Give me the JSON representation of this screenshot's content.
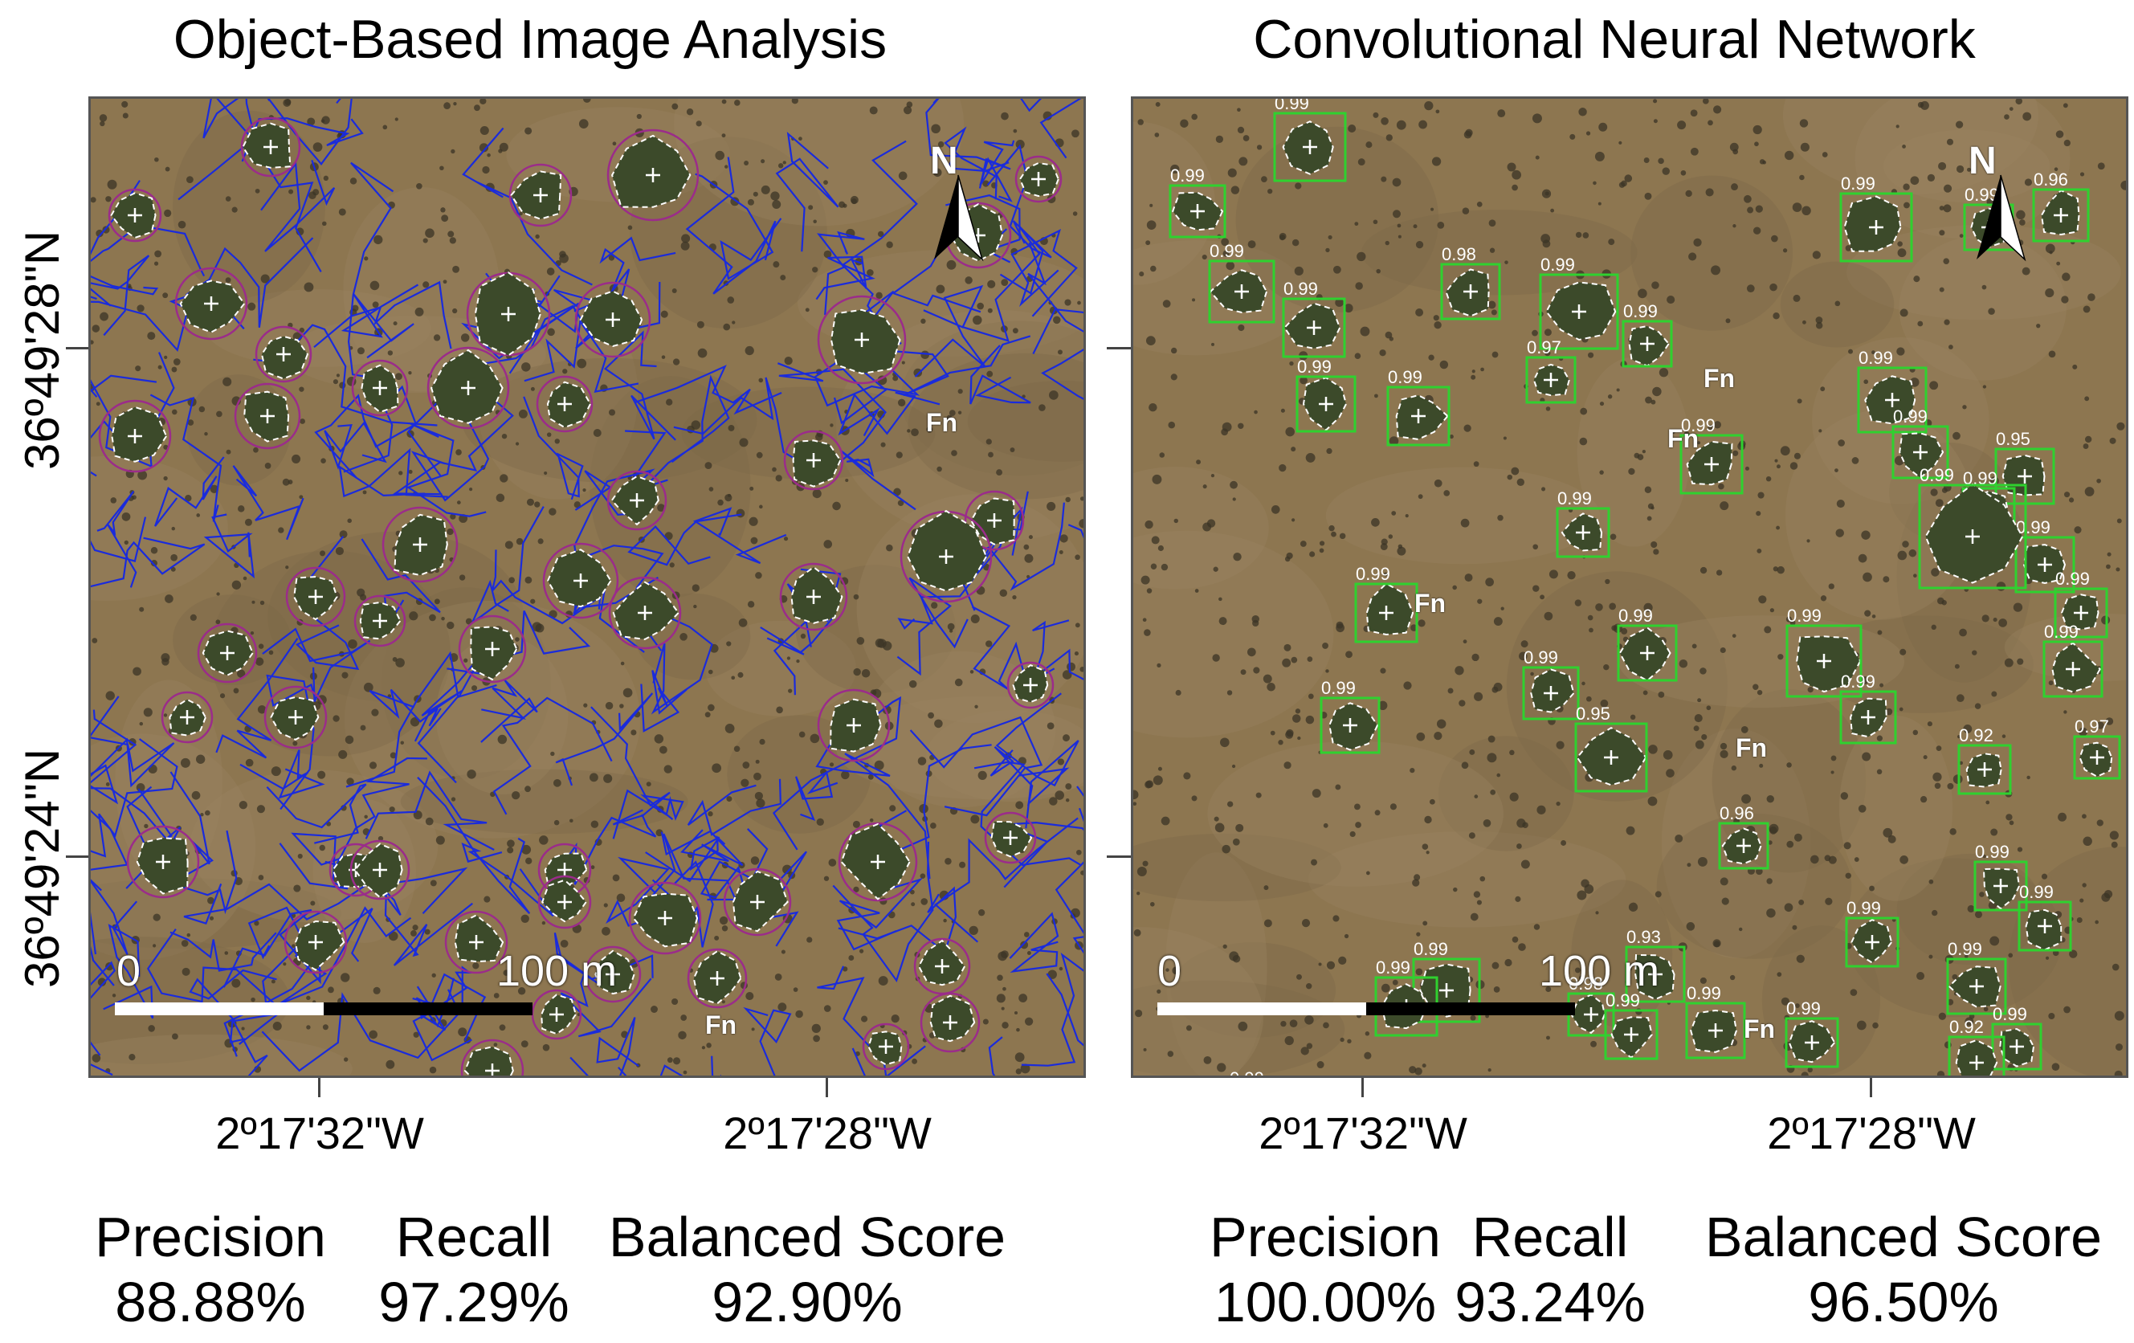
{
  "panels": [
    {
      "title": "Object-Based Image Analysis",
      "north": "N",
      "scale_start": "0",
      "scale_end": "100 m",
      "fn_labels": [
        "Fn",
        "Fn"
      ],
      "metrics": [
        {
          "name": "Precision",
          "value": "88.88%"
        },
        {
          "name": "Recall",
          "value": "97.29%"
        },
        {
          "name": "Balanced Score",
          "value": "92.90%"
        }
      ]
    },
    {
      "title": "Convolutional Neural Network",
      "north": "N",
      "scale_start": "0",
      "scale_end": "100 m",
      "fn_labels": [
        "Fn",
        "Fn",
        "Fn",
        "Fn",
        "Fn"
      ],
      "detection_scores": [
        "0.99",
        "0.99",
        "0.99",
        "0.99",
        "0.99",
        "0.98",
        "0.99",
        "0.99",
        "0.99",
        "0.99",
        "0.97",
        "0.99",
        "0.99",
        "0.99",
        "0.99",
        "0.95",
        "0.96",
        "0.99",
        "0.99",
        "0.99",
        "0.99",
        "0.99",
        "0.99",
        "0.99",
        "0.97",
        "0.99",
        "0.99",
        "0.99",
        "0.95",
        "0.99",
        "0.99",
        "0.92",
        "0.96",
        "0.99",
        "0.99",
        "0.99",
        "0.99",
        "0.93",
        "0.99",
        "0.99",
        "0.98",
        "0.99",
        "0.99",
        "0.99",
        "0.99",
        "0.92",
        "0.99",
        "0.99"
      ],
      "metrics": [
        {
          "name": "Precision",
          "value": "100.00%"
        },
        {
          "name": "Recall",
          "value": "93.24%"
        },
        {
          "name": "Balanced Score",
          "value": "96.50%"
        }
      ]
    }
  ],
  "latitude_labels": [
    "36º49'28\"N",
    "36º49'24\"N"
  ],
  "longitude_labels": [
    "2º17'32\"W",
    "2º17'28\"W",
    "2º17'32\"W",
    "2º17'28\"W"
  ],
  "colors": {
    "segments": "#1a2bdc",
    "detection_box": "#2fd12f",
    "outline": "#ffffff",
    "terrain": "#8d7650"
  }
}
